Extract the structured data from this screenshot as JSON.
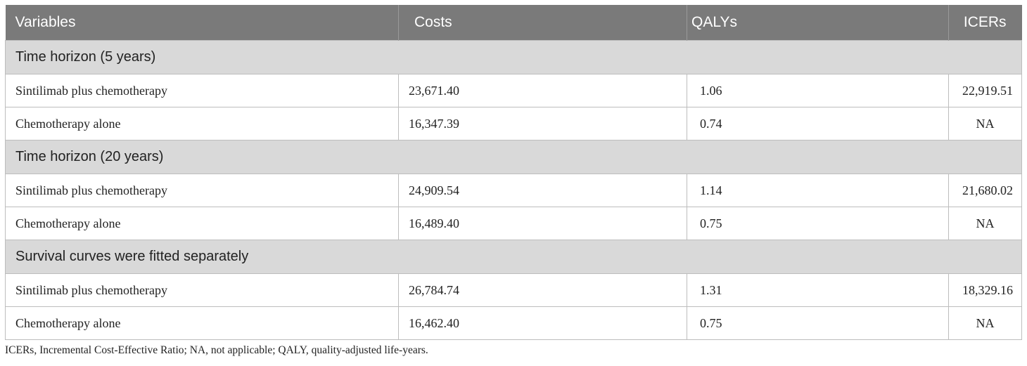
{
  "table": {
    "headers": [
      "Variables",
      "Costs",
      "QALYs",
      "ICERs"
    ],
    "sections": [
      {
        "title": "Time horizon (5 years)",
        "rows": [
          {
            "variable": "Sintilimab plus chemotherapy",
            "costs": "23,671.40",
            "qalys": "1.06",
            "icers": "22,919.51"
          },
          {
            "variable": "Chemotherapy alone",
            "costs": "16,347.39",
            "qalys": "0.74",
            "icers": "NA"
          }
        ]
      },
      {
        "title": "Time horizon (20 years)",
        "rows": [
          {
            "variable": "Sintilimab plus chemotherapy",
            "costs": "24,909.54",
            "qalys": "1.14",
            "icers": "21,680.02"
          },
          {
            "variable": "Chemotherapy alone",
            "costs": "16,489.40",
            "qalys": "0.75",
            "icers": "NA"
          }
        ]
      },
      {
        "title": "Survival curves were fitted separately",
        "rows": [
          {
            "variable": "Sintilimab plus chemotherapy",
            "costs": "26,784.74",
            "qalys": "1.31",
            "icers": "18,329.16"
          },
          {
            "variable": "Chemotherapy alone",
            "costs": "16,462.40",
            "qalys": "0.75",
            "icers": "NA"
          }
        ]
      }
    ]
  },
  "footnote": "ICERs, Incremental Cost-Effective Ratio; NA, not applicable; QALY, quality-adjusted life-years."
}
